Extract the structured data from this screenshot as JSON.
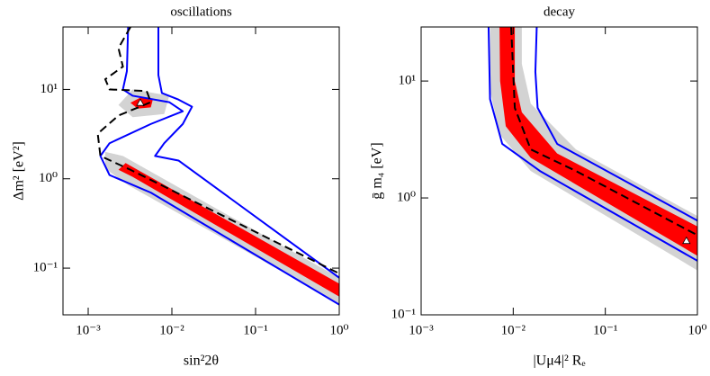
{
  "chart_data": [
    {
      "type": "region",
      "title": "oscillations",
      "xlabel": "sin²2θ",
      "ylabel": "Δm² [eV²]",
      "log_x": true,
      "log_y": true,
      "xlim": [
        0.0005,
        1
      ],
      "ylim": [
        0.03,
        50
      ],
      "xticks": [
        {
          "value": 0.001,
          "label": "10⁻³"
        },
        {
          "value": 0.01,
          "label": "10⁻²"
        },
        {
          "value": 0.1,
          "label": "10⁻¹"
        },
        {
          "value": 1,
          "label": "10⁰"
        }
      ],
      "yticks": [
        {
          "value": 0.1,
          "label": "10⁻¹"
        },
        {
          "value": 1,
          "label": "10⁰"
        },
        {
          "value": 10,
          "label": "10¹"
        }
      ],
      "series": [
        {
          "style": "fill",
          "color": "#d3d3d3",
          "x": [
            0.0016,
            0.0026,
            1,
            1,
            0.003,
            0.0016
          ],
          "y": [
            2.0,
            1.8,
            0.078,
            0.04,
            0.85,
            1.3
          ]
        },
        {
          "style": "fill",
          "color": "#d3d3d3",
          "x": [
            0.0023,
            0.0034,
            0.0093,
            0.0081,
            0.0034
          ],
          "y": [
            6.7,
            10,
            8.5,
            5.3,
            4.9
          ]
        },
        {
          "style": "fill",
          "color": "#ff0000",
          "x": [
            0.0023,
            0.0028,
            1,
            1,
            0.0034
          ],
          "y": [
            1.26,
            1.5,
            0.067,
            0.048,
            1.05
          ]
        },
        {
          "style": "fill",
          "color": "#ff0000",
          "x": [
            0.0032,
            0.0042,
            0.0059,
            0.0056,
            0.0039
          ],
          "y": [
            7.1,
            8.1,
            7.6,
            6.3,
            6.1
          ]
        },
        {
          "style": "line",
          "color": "#0000ff",
          "x": [
            0.003,
            0.0029,
            0.0026,
            0.0034,
            0.0093,
            0.0135,
            0.0056,
            0.0018,
            0.0014,
            0.0018,
            0.0056,
            1
          ],
          "y": [
            50,
            16,
            10,
            8.5,
            7.2,
            5.7,
            4.1,
            2.5,
            1.8,
            1.1,
            0.7,
            0.039
          ]
        },
        {
          "style": "line",
          "color": "#0000ff",
          "x": [
            0.0069,
            0.0069,
            0.0076,
            0.012,
            0.0174,
            0.0135,
            0.0081,
            0.0063,
            0.012,
            1
          ],
          "y": [
            50,
            14.5,
            9.1,
            7.7,
            6.4,
            4.1,
            2.5,
            1.8,
            1.6,
            0.078
          ]
        },
        {
          "style": "dashed",
          "color": "#000000",
          "x": [
            0.0032,
            0.0023,
            0.0026,
            0.0016,
            0.0018,
            0.005,
            0.0056,
            0.0023,
            0.0013,
            0.0014,
            0.0032,
            1
          ],
          "y": [
            50,
            29,
            18,
            13,
            10,
            9.6,
            7.2,
            5.1,
            3.2,
            1.8,
            1.26,
            0.087
          ]
        },
        {
          "style": "marker",
          "color": "#ffffff",
          "x": [
            0.0042
          ],
          "y": [
            7.1
          ]
        }
      ]
    },
    {
      "type": "region",
      "title": "decay",
      "xlabel": "|Uμ4|² Rₑ",
      "ylabel": "ḡ m₄  [eV]",
      "log_x": true,
      "log_y": true,
      "xlim": [
        0.001,
        1
      ],
      "ylim": [
        0.1,
        29
      ],
      "xticks": [
        {
          "value": 0.001,
          "label": "10⁻³"
        },
        {
          "value": 0.01,
          "label": "10⁻²"
        },
        {
          "value": 0.1,
          "label": "10⁻¹"
        },
        {
          "value": 1,
          "label": "10⁰"
        }
      ],
      "yticks": [
        {
          "value": 0.1,
          "label": "10⁻¹"
        },
        {
          "value": 1,
          "label": "10⁰"
        },
        {
          "value": 10,
          "label": "10¹"
        }
      ],
      "series": [
        {
          "style": "fill",
          "color": "#d3d3d3",
          "x": [
            0.0056,
            0.0056,
            0.0071,
            0.0155,
            1,
            1,
            0.048,
            0.0155,
            0.0124,
            0.0124
          ],
          "y": [
            29,
            8.4,
            3.5,
            1.7,
            0.24,
            0.7,
            2.6,
            6.4,
            14,
            29
          ]
        },
        {
          "style": "fill",
          "color": "#ff0000",
          "x": [
            0.0071,
            0.0072,
            0.0083,
            0.0155,
            1,
            1,
            0.03,
            0.0124,
            0.0104,
            0.0104
          ],
          "y": [
            29,
            10,
            4.1,
            2.2,
            0.32,
            0.57,
            2.4,
            5.4,
            10,
            29
          ]
        },
        {
          "style": "line",
          "color": "#0000ff",
          "x": [
            0.0054,
            0.0056,
            0.0076,
            0.0195,
            1
          ],
          "y": [
            29,
            7.0,
            2.9,
            1.7,
            0.29
          ]
        },
        {
          "style": "line",
          "color": "#0000ff",
          "x": [
            1,
            0.03,
            0.0184,
            0.0174,
            0.018
          ],
          "y": [
            0.64,
            2.9,
            5.9,
            12,
            29
          ]
        },
        {
          "style": "dashed",
          "color": "#000000",
          "x": [
            0.0095,
            0.0104,
            0.0155,
            0.048,
            1
          ],
          "y": [
            29,
            5.9,
            2.6,
            1.7,
            0.48
          ]
        },
        {
          "style": "marker",
          "color": "#ffffff",
          "x": [
            0.76
          ],
          "y": [
            0.43
          ]
        }
      ]
    }
  ]
}
